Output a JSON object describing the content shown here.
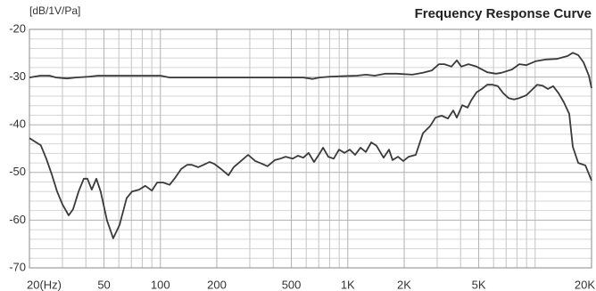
{
  "chart_data": {
    "type": "line",
    "title": "Frequency Response Curve",
    "y_label": "[dB/1V/Pa]",
    "xscale": "log",
    "xlim": [
      20,
      20000
    ],
    "ylim": [
      -70,
      -20
    ],
    "xticks": [
      {
        "value": 20,
        "label": "20(Hz)"
      },
      50,
      100,
      200,
      500,
      {
        "value": 1000,
        "label": "1K"
      },
      {
        "value": 2000,
        "label": "2K"
      },
      {
        "value": 5000,
        "label": "5K"
      },
      {
        "value": 20000,
        "label": "20K"
      }
    ],
    "xminorticks": [
      30,
      40,
      60,
      70,
      80,
      90,
      300,
      400,
      600,
      700,
      800,
      900,
      3000,
      4000,
      6000,
      7000,
      8000,
      9000,
      10000
    ],
    "yticks": [
      -20,
      -30,
      -40,
      -50,
      -60,
      -70
    ],
    "yminorticks": [
      -22,
      -24,
      -26,
      -28,
      -32,
      -34,
      -36,
      -38,
      -42,
      -44,
      -46,
      -48,
      -52,
      -54,
      -56,
      -58,
      -62,
      -64,
      -66,
      -68
    ],
    "grid": true,
    "series": [
      {
        "color": "#3a3a3a",
        "x": [
          20,
          22.8,
          25.5,
          27.8,
          31.7,
          35.4,
          41.7,
          46.5,
          100,
          112,
          579,
          647,
          706,
          805,
          1119,
          1248,
          1393,
          1589,
          1833,
          2209,
          2518,
          2812,
          3069,
          3275,
          3575,
          3820,
          4035,
          4405,
          4867,
          5549,
          6183,
          6608,
          7534,
          8225,
          8979,
          10020,
          11430,
          13030,
          14870,
          15890,
          16980,
          18120,
          19360,
          20000
        ],
        "values": [
          -30.1,
          -29.7,
          -29.7,
          -30.1,
          -30.3,
          -30.1,
          -29.9,
          -29.7,
          -29.7,
          -30.1,
          -30.1,
          -30.4,
          -30.1,
          -29.9,
          -29.7,
          -29.5,
          -29.7,
          -29.3,
          -29.3,
          -29.5,
          -29.1,
          -28.6,
          -27.3,
          -27.3,
          -27.8,
          -26.5,
          -27.8,
          -27.3,
          -27.8,
          -29,
          -29.3,
          -29.1,
          -28.4,
          -27.3,
          -27.5,
          -26.7,
          -26.3,
          -26.2,
          -25.6,
          -24.9,
          -25.4,
          -26.9,
          -29.7,
          -32.3
        ]
      },
      {
        "color": "#3a3a3a",
        "x": [
          20,
          23,
          24.6,
          26.3,
          28.1,
          30,
          32.4,
          34.2,
          36.6,
          39,
          40.8,
          43,
          45.5,
          48,
          51.9,
          56,
          60.5,
          66,
          70.6,
          77,
          83,
          90,
          96,
          103.5,
          112,
          119.5,
          129,
          139,
          147,
          159,
          170,
          183,
          194,
          211,
          231,
          246,
          269,
          294,
          321,
          350,
          373,
          408,
          436,
          466,
          508,
          542,
          579,
          618,
          661,
          706,
          738,
          787,
          841,
          898,
          960,
          1025,
          1094,
          1170,
          1248,
          1334,
          1423,
          1553,
          1660,
          1734,
          1853,
          1979,
          2114,
          2307,
          2518,
          2749,
          2938,
          3170,
          3421,
          3656,
          3820,
          4082,
          4361,
          4556,
          4867,
          5193,
          5549,
          5920,
          6325,
          6761,
          7217,
          7710,
          8225,
          8979,
          9594,
          10257,
          10944,
          11700,
          12480,
          13340,
          14230,
          15210,
          15890,
          16980,
          18540,
          20000
        ],
        "values": [
          -42.8,
          -44.3,
          -47.1,
          -50.4,
          -54,
          -56.7,
          -59,
          -57.7,
          -54,
          -51.3,
          -51.3,
          -53.6,
          -51.3,
          -54,
          -60.1,
          -63.8,
          -61,
          -55.4,
          -54,
          -53.6,
          -52.8,
          -53.8,
          -52.1,
          -52.1,
          -52.6,
          -51.2,
          -49.3,
          -48.4,
          -48.4,
          -48.9,
          -48.4,
          -47.8,
          -48.2,
          -49.3,
          -50.6,
          -48.9,
          -47.6,
          -46.3,
          -47.6,
          -48.2,
          -48.7,
          -47.4,
          -47.1,
          -46.7,
          -47.1,
          -46.5,
          -46.9,
          -45.9,
          -47.8,
          -46.1,
          -44.8,
          -46.7,
          -47.1,
          -45.2,
          -45.9,
          -45.2,
          -46.3,
          -44.8,
          -45.7,
          -43.7,
          -44.4,
          -46.9,
          -45.2,
          -47.4,
          -46.7,
          -47.6,
          -46.7,
          -46.3,
          -41.8,
          -40.3,
          -38.5,
          -38.1,
          -38.7,
          -37,
          -38.5,
          -35.9,
          -36.4,
          -34.9,
          -33.2,
          -32.5,
          -31.6,
          -31.6,
          -31.9,
          -33.4,
          -34.4,
          -34.7,
          -34.4,
          -33.8,
          -32.7,
          -31.6,
          -31.8,
          -32.5,
          -31.9,
          -33.4,
          -35.3,
          -37.7,
          -44.6,
          -48,
          -48.5,
          -51.7
        ]
      }
    ]
  }
}
